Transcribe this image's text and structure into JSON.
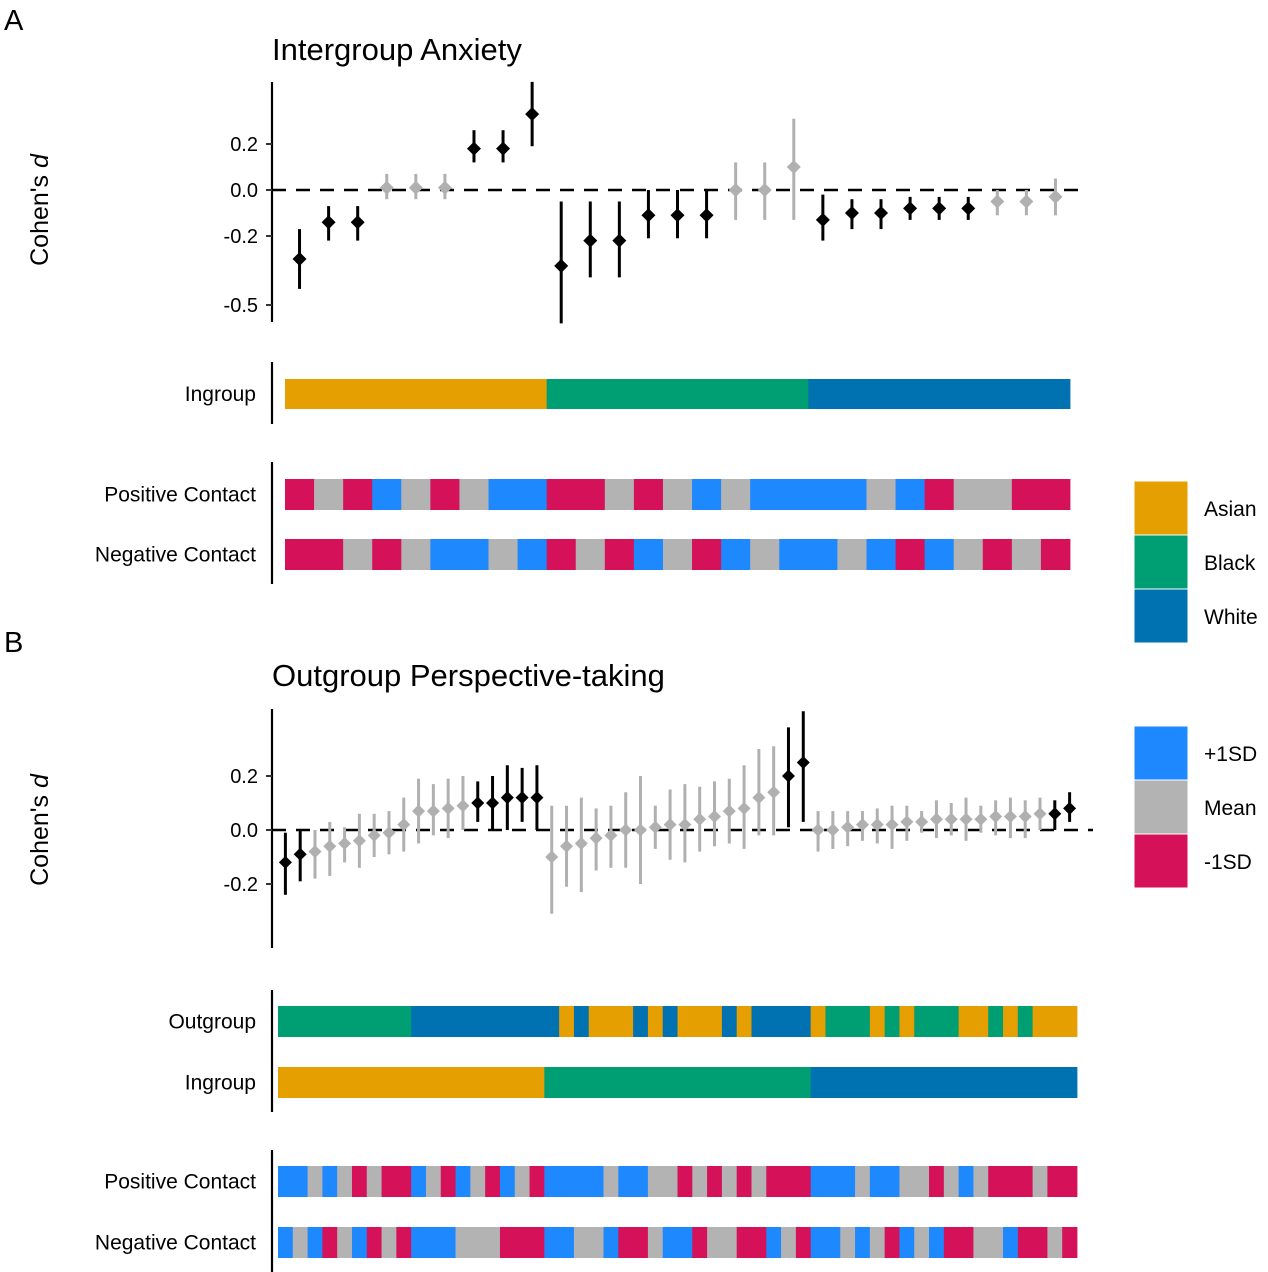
{
  "colors": {
    "sig": "#000000",
    "nonsig": "#b0b0b0",
    "Asian": "#E69F00",
    "Black": "#009E73",
    "White": "#0072B2",
    "+1SD": "#1E88FF",
    "Mean": "#B3B3B3",
    "-1SD": "#D41159"
  },
  "legend_group": {
    "items": [
      "Asian",
      "Black",
      "White"
    ]
  },
  "legend_contact": {
    "items": [
      "+1SD",
      "Mean",
      "-1SD"
    ]
  },
  "chart_data": [
    {
      "panel": "A",
      "type": "scatter",
      "subtype": "point-range (forest) with category strips",
      "title": "Intergroup Anxiety",
      "ylabel": "Cohen's d",
      "ylim": [
        -0.57,
        0.47
      ],
      "yticks": [
        0.2,
        0.0,
        -0.2,
        -0.5
      ],
      "ytick_labels": [
        "0.2",
        "0.0",
        "-0.2",
        "-0.5"
      ],
      "reference_line": 0.0,
      "points": [
        {
          "d": -0.3,
          "lo": -0.43,
          "hi": -0.17,
          "sig": true
        },
        {
          "d": -0.14,
          "lo": -0.22,
          "hi": -0.07,
          "sig": true
        },
        {
          "d": -0.14,
          "lo": -0.22,
          "hi": -0.07,
          "sig": true
        },
        {
          "d": 0.01,
          "lo": -0.04,
          "hi": 0.07,
          "sig": false
        },
        {
          "d": 0.01,
          "lo": -0.04,
          "hi": 0.07,
          "sig": false
        },
        {
          "d": 0.01,
          "lo": -0.04,
          "hi": 0.07,
          "sig": false
        },
        {
          "d": 0.18,
          "lo": 0.12,
          "hi": 0.26,
          "sig": true
        },
        {
          "d": 0.18,
          "lo": 0.12,
          "hi": 0.26,
          "sig": true
        },
        {
          "d": 0.33,
          "lo": 0.19,
          "hi": 0.47,
          "sig": true
        },
        {
          "d": -0.33,
          "lo": -0.58,
          "hi": -0.05,
          "sig": true
        },
        {
          "d": -0.22,
          "lo": -0.38,
          "hi": -0.05,
          "sig": true
        },
        {
          "d": -0.22,
          "lo": -0.38,
          "hi": -0.05,
          "sig": true
        },
        {
          "d": -0.11,
          "lo": -0.21,
          "hi": 0.0,
          "sig": true
        },
        {
          "d": -0.11,
          "lo": -0.21,
          "hi": 0.0,
          "sig": true
        },
        {
          "d": -0.11,
          "lo": -0.21,
          "hi": 0.0,
          "sig": true
        },
        {
          "d": 0.0,
          "lo": -0.13,
          "hi": 0.12,
          "sig": false
        },
        {
          "d": 0.0,
          "lo": -0.13,
          "hi": 0.12,
          "sig": false
        },
        {
          "d": 0.1,
          "lo": -0.13,
          "hi": 0.31,
          "sig": false
        },
        {
          "d": -0.13,
          "lo": -0.22,
          "hi": -0.02,
          "sig": true
        },
        {
          "d": -0.1,
          "lo": -0.17,
          "hi": -0.04,
          "sig": true
        },
        {
          "d": -0.1,
          "lo": -0.17,
          "hi": -0.04,
          "sig": true
        },
        {
          "d": -0.08,
          "lo": -0.13,
          "hi": -0.03,
          "sig": true
        },
        {
          "d": -0.08,
          "lo": -0.13,
          "hi": -0.03,
          "sig": true
        },
        {
          "d": -0.08,
          "lo": -0.13,
          "hi": -0.03,
          "sig": true
        },
        {
          "d": -0.05,
          "lo": -0.11,
          "hi": 0.0,
          "sig": false
        },
        {
          "d": -0.05,
          "lo": -0.11,
          "hi": 0.0,
          "sig": false
        },
        {
          "d": -0.03,
          "lo": -0.11,
          "hi": 0.05,
          "sig": false
        }
      ],
      "strips": [
        {
          "label": "Ingroup",
          "legend": "group",
          "runs": [
            [
              "Asian",
              9
            ],
            [
              "Black",
              9
            ],
            [
              "White",
              9
            ]
          ]
        }
      ],
      "contact_strips": [
        {
          "label": "Positive Contact",
          "legend": "contact",
          "cells": [
            "-1SD",
            "Mean",
            "-1SD",
            "+1SD",
            "Mean",
            "-1SD",
            "Mean",
            "+1SD",
            "+1SD",
            "-1SD",
            "-1SD",
            "Mean",
            "-1SD",
            "Mean",
            "+1SD",
            "Mean",
            "+1SD",
            "+1SD",
            "+1SD",
            "+1SD",
            "Mean",
            "+1SD",
            "-1SD",
            "Mean",
            "Mean",
            "-1SD",
            "-1SD"
          ]
        },
        {
          "label": "Negative Contact",
          "legend": "contact",
          "cells": [
            "-1SD",
            "-1SD",
            "Mean",
            "-1SD",
            "Mean",
            "+1SD",
            "+1SD",
            "Mean",
            "+1SD",
            "-1SD",
            "Mean",
            "-1SD",
            "+1SD",
            "Mean",
            "-1SD",
            "+1SD",
            "Mean",
            "+1SD",
            "+1SD",
            "Mean",
            "+1SD",
            "-1SD",
            "+1SD",
            "Mean",
            "-1SD",
            "Mean",
            "-1SD"
          ]
        }
      ]
    },
    {
      "panel": "B",
      "type": "scatter",
      "subtype": "point-range (forest) with category strips",
      "title": "Outgroup Perspective-taking",
      "ylabel": "Cohen's d",
      "ylim": [
        -0.44,
        0.45
      ],
      "yticks": [
        0.2,
        0.0,
        -0.2
      ],
      "ytick_labels": [
        "0.2",
        "0.0",
        "-0.2"
      ],
      "reference_line": 0.0,
      "points": [
        {
          "d": -0.12,
          "lo": -0.24,
          "hi": -0.01,
          "sig": true
        },
        {
          "d": -0.09,
          "lo": -0.19,
          "hi": 0.0,
          "sig": true
        },
        {
          "d": -0.08,
          "lo": -0.18,
          "hi": 0.0,
          "sig": false
        },
        {
          "d": -0.06,
          "lo": -0.17,
          "hi": 0.03,
          "sig": false
        },
        {
          "d": -0.05,
          "lo": -0.12,
          "hi": 0.01,
          "sig": false
        },
        {
          "d": -0.04,
          "lo": -0.14,
          "hi": 0.06,
          "sig": false
        },
        {
          "d": -0.02,
          "lo": -0.1,
          "hi": 0.06,
          "sig": false
        },
        {
          "d": -0.01,
          "lo": -0.09,
          "hi": 0.07,
          "sig": false
        },
        {
          "d": 0.02,
          "lo": -0.08,
          "hi": 0.12,
          "sig": false
        },
        {
          "d": 0.07,
          "lo": -0.05,
          "hi": 0.19,
          "sig": false
        },
        {
          "d": 0.07,
          "lo": -0.02,
          "hi": 0.17,
          "sig": false
        },
        {
          "d": 0.08,
          "lo": -0.03,
          "hi": 0.19,
          "sig": false
        },
        {
          "d": 0.09,
          "lo": 0.0,
          "hi": 0.2,
          "sig": false
        },
        {
          "d": 0.1,
          "lo": 0.03,
          "hi": 0.18,
          "sig": true
        },
        {
          "d": 0.1,
          "lo": 0.0,
          "hi": 0.2,
          "sig": true
        },
        {
          "d": 0.12,
          "lo": 0.0,
          "hi": 0.24,
          "sig": true
        },
        {
          "d": 0.12,
          "lo": 0.03,
          "hi": 0.23,
          "sig": true
        },
        {
          "d": 0.12,
          "lo": 0.0,
          "hi": 0.24,
          "sig": true
        },
        {
          "d": -0.1,
          "lo": -0.31,
          "hi": 0.09,
          "sig": false
        },
        {
          "d": -0.06,
          "lo": -0.21,
          "hi": 0.09,
          "sig": false
        },
        {
          "d": -0.05,
          "lo": -0.23,
          "hi": 0.12,
          "sig": false
        },
        {
          "d": -0.03,
          "lo": -0.15,
          "hi": 0.08,
          "sig": false
        },
        {
          "d": -0.02,
          "lo": -0.14,
          "hi": 0.09,
          "sig": false
        },
        {
          "d": 0.0,
          "lo": -0.14,
          "hi": 0.14,
          "sig": false
        },
        {
          "d": 0.0,
          "lo": -0.2,
          "hi": 0.2,
          "sig": false
        },
        {
          "d": 0.01,
          "lo": -0.07,
          "hi": 0.09,
          "sig": false
        },
        {
          "d": 0.02,
          "lo": -0.11,
          "hi": 0.15,
          "sig": false
        },
        {
          "d": 0.02,
          "lo": -0.12,
          "hi": 0.17,
          "sig": false
        },
        {
          "d": 0.04,
          "lo": -0.08,
          "hi": 0.16,
          "sig": false
        },
        {
          "d": 0.05,
          "lo": -0.06,
          "hi": 0.18,
          "sig": false
        },
        {
          "d": 0.07,
          "lo": -0.05,
          "hi": 0.19,
          "sig": false
        },
        {
          "d": 0.08,
          "lo": -0.07,
          "hi": 0.24,
          "sig": false
        },
        {
          "d": 0.12,
          "lo": -0.02,
          "hi": 0.3,
          "sig": false
        },
        {
          "d": 0.14,
          "lo": -0.02,
          "hi": 0.31,
          "sig": false
        },
        {
          "d": 0.2,
          "lo": 0.01,
          "hi": 0.38,
          "sig": true
        },
        {
          "d": 0.25,
          "lo": 0.03,
          "hi": 0.44,
          "sig": true
        },
        {
          "d": 0.0,
          "lo": -0.08,
          "hi": 0.07,
          "sig": false
        },
        {
          "d": 0.0,
          "lo": -0.07,
          "hi": 0.07,
          "sig": false
        },
        {
          "d": 0.01,
          "lo": -0.06,
          "hi": 0.07,
          "sig": false
        },
        {
          "d": 0.02,
          "lo": -0.04,
          "hi": 0.07,
          "sig": false
        },
        {
          "d": 0.02,
          "lo": -0.05,
          "hi": 0.08,
          "sig": false
        },
        {
          "d": 0.02,
          "lo": -0.07,
          "hi": 0.09,
          "sig": false
        },
        {
          "d": 0.03,
          "lo": -0.04,
          "hi": 0.09,
          "sig": false
        },
        {
          "d": 0.03,
          "lo": -0.01,
          "hi": 0.07,
          "sig": false
        },
        {
          "d": 0.04,
          "lo": -0.03,
          "hi": 0.11,
          "sig": false
        },
        {
          "d": 0.04,
          "lo": -0.02,
          "hi": 0.1,
          "sig": false
        },
        {
          "d": 0.04,
          "lo": -0.04,
          "hi": 0.12,
          "sig": false
        },
        {
          "d": 0.04,
          "lo": -0.01,
          "hi": 0.09,
          "sig": false
        },
        {
          "d": 0.05,
          "lo": -0.02,
          "hi": 0.11,
          "sig": false
        },
        {
          "d": 0.05,
          "lo": -0.03,
          "hi": 0.12,
          "sig": false
        },
        {
          "d": 0.05,
          "lo": -0.03,
          "hi": 0.11,
          "sig": false
        },
        {
          "d": 0.06,
          "lo": 0.0,
          "hi": 0.12,
          "sig": false
        },
        {
          "d": 0.06,
          "lo": 0.0,
          "hi": 0.11,
          "sig": true
        },
        {
          "d": 0.08,
          "lo": 0.03,
          "hi": 0.14,
          "sig": true
        }
      ],
      "strips": [
        {
          "label": "Outgroup",
          "legend": "group",
          "runs": [
            [
              "Black",
              9
            ],
            [
              "White",
              10
            ],
            [
              "Asian",
              1
            ],
            [
              "White",
              1
            ],
            [
              "Asian",
              3
            ],
            [
              "White",
              1
            ],
            [
              "Asian",
              1
            ],
            [
              "White",
              1
            ],
            [
              "Asian",
              3
            ],
            [
              "White",
              1
            ],
            [
              "Asian",
              1
            ],
            [
              "White",
              4
            ],
            [
              "Asian",
              1
            ],
            [
              "Black",
              3
            ],
            [
              "Asian",
              1
            ],
            [
              "Black",
              1
            ],
            [
              "Asian",
              1
            ],
            [
              "Black",
              3
            ],
            [
              "Asian",
              2
            ],
            [
              "Black",
              1
            ],
            [
              "Asian",
              1
            ],
            [
              "Black",
              1
            ],
            [
              "Asian",
              3
            ]
          ]
        },
        {
          "label": "Ingroup",
          "legend": "group",
          "runs": [
            [
              "Asian",
              18
            ],
            [
              "Black",
              18
            ],
            [
              "White",
              18
            ]
          ]
        }
      ],
      "contact_strips": [
        {
          "label": "Positive Contact",
          "legend": "contact",
          "runs": [
            [
              "+1SD",
              2
            ],
            [
              "Mean",
              1
            ],
            [
              "+1SD",
              1
            ],
            [
              "Mean",
              1
            ],
            [
              "-1SD",
              1
            ],
            [
              "Mean",
              1
            ],
            [
              "-1SD",
              2
            ],
            [
              "+1SD",
              1
            ],
            [
              "Mean",
              1
            ],
            [
              "-1SD",
              1
            ],
            [
              "+1SD",
              1
            ],
            [
              "Mean",
              1
            ],
            [
              "-1SD",
              1
            ],
            [
              "+1SD",
              1
            ],
            [
              "Mean",
              1
            ],
            [
              "-1SD",
              1
            ],
            [
              "+1SD",
              4
            ],
            [
              "Mean",
              1
            ],
            [
              "+1SD",
              2
            ],
            [
              "Mean",
              2
            ],
            [
              "-1SD",
              1
            ],
            [
              "Mean",
              1
            ],
            [
              "-1SD",
              1
            ],
            [
              "Mean",
              1
            ],
            [
              "-1SD",
              1
            ],
            [
              "Mean",
              1
            ],
            [
              "-1SD",
              3
            ],
            [
              "+1SD",
              3
            ],
            [
              "Mean",
              1
            ],
            [
              "+1SD",
              2
            ],
            [
              "Mean",
              2
            ],
            [
              "-1SD",
              1
            ],
            [
              "Mean",
              1
            ],
            [
              "+1SD",
              1
            ],
            [
              "Mean",
              1
            ],
            [
              "-1SD",
              3
            ],
            [
              "Mean",
              1
            ],
            [
              "-1SD",
              2
            ]
          ]
        },
        {
          "label": "Negative Contact",
          "legend": "contact",
          "runs": [
            [
              "+1SD",
              1
            ],
            [
              "Mean",
              1
            ],
            [
              "+1SD",
              1
            ],
            [
              "-1SD",
              1
            ],
            [
              "Mean",
              1
            ],
            [
              "+1SD",
              1
            ],
            [
              "-1SD",
              1
            ],
            [
              "Mean",
              1
            ],
            [
              "-1SD",
              1
            ],
            [
              "+1SD",
              3
            ],
            [
              "Mean",
              3
            ],
            [
              "-1SD",
              3
            ],
            [
              "+1SD",
              2
            ],
            [
              "Mean",
              2
            ],
            [
              "+1SD",
              1
            ],
            [
              "-1SD",
              2
            ],
            [
              "Mean",
              1
            ],
            [
              "+1SD",
              2
            ],
            [
              "-1SD",
              1
            ],
            [
              "Mean",
              2
            ],
            [
              "-1SD",
              2
            ],
            [
              "+1SD",
              1
            ],
            [
              "Mean",
              1
            ],
            [
              "-1SD",
              1
            ],
            [
              "+1SD",
              2
            ],
            [
              "Mean",
              1
            ],
            [
              "+1SD",
              1
            ],
            [
              "Mean",
              1
            ],
            [
              "-1SD",
              1
            ],
            [
              "+1SD",
              1
            ],
            [
              "Mean",
              1
            ],
            [
              "+1SD",
              1
            ],
            [
              "-1SD",
              2
            ],
            [
              "Mean",
              2
            ],
            [
              "+1SD",
              1
            ],
            [
              "-1SD",
              2
            ],
            [
              "Mean",
              1
            ],
            [
              "-1SD",
              1
            ]
          ]
        }
      ]
    }
  ]
}
